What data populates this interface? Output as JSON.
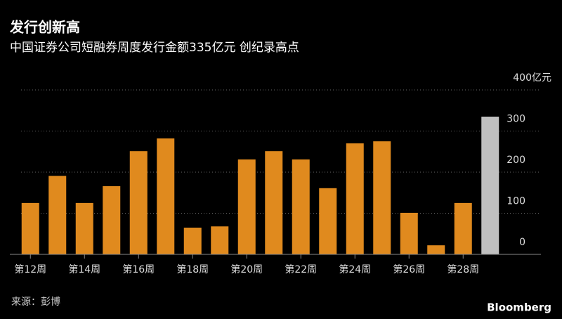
{
  "chart_data": {
    "type": "bar",
    "title": "发行创新高",
    "subtitle": "中国证券公司短融券周度发行金额335亿元 创纪录高点",
    "source": "来源：彭博",
    "brand": "Bloomberg",
    "categories": [
      "第12周",
      null,
      "第14周",
      null,
      "第16周",
      null,
      "第18周",
      null,
      "第20周",
      null,
      "第22周",
      null,
      "第24周",
      null,
      "第26周",
      null,
      "第28周",
      null
    ],
    "values": [
      125,
      191,
      125,
      166,
      251,
      282,
      65,
      68,
      231,
      251,
      231,
      161,
      270,
      275,
      101,
      22,
      125,
      335
    ],
    "colors": [
      "#e08a1e",
      "#e08a1e",
      "#e08a1e",
      "#e08a1e",
      "#e08a1e",
      "#e08a1e",
      "#e08a1e",
      "#e08a1e",
      "#e08a1e",
      "#e08a1e",
      "#e08a1e",
      "#e08a1e",
      "#e08a1e",
      "#e08a1e",
      "#e08a1e",
      "#e08a1e",
      "#e08a1e",
      "#c0c0c0"
    ],
    "ylim": [
      0,
      400
    ],
    "yticks": [
      0,
      100,
      200,
      300,
      {
        "value": 400,
        "label": "400亿元"
      }
    ],
    "grid": true
  }
}
